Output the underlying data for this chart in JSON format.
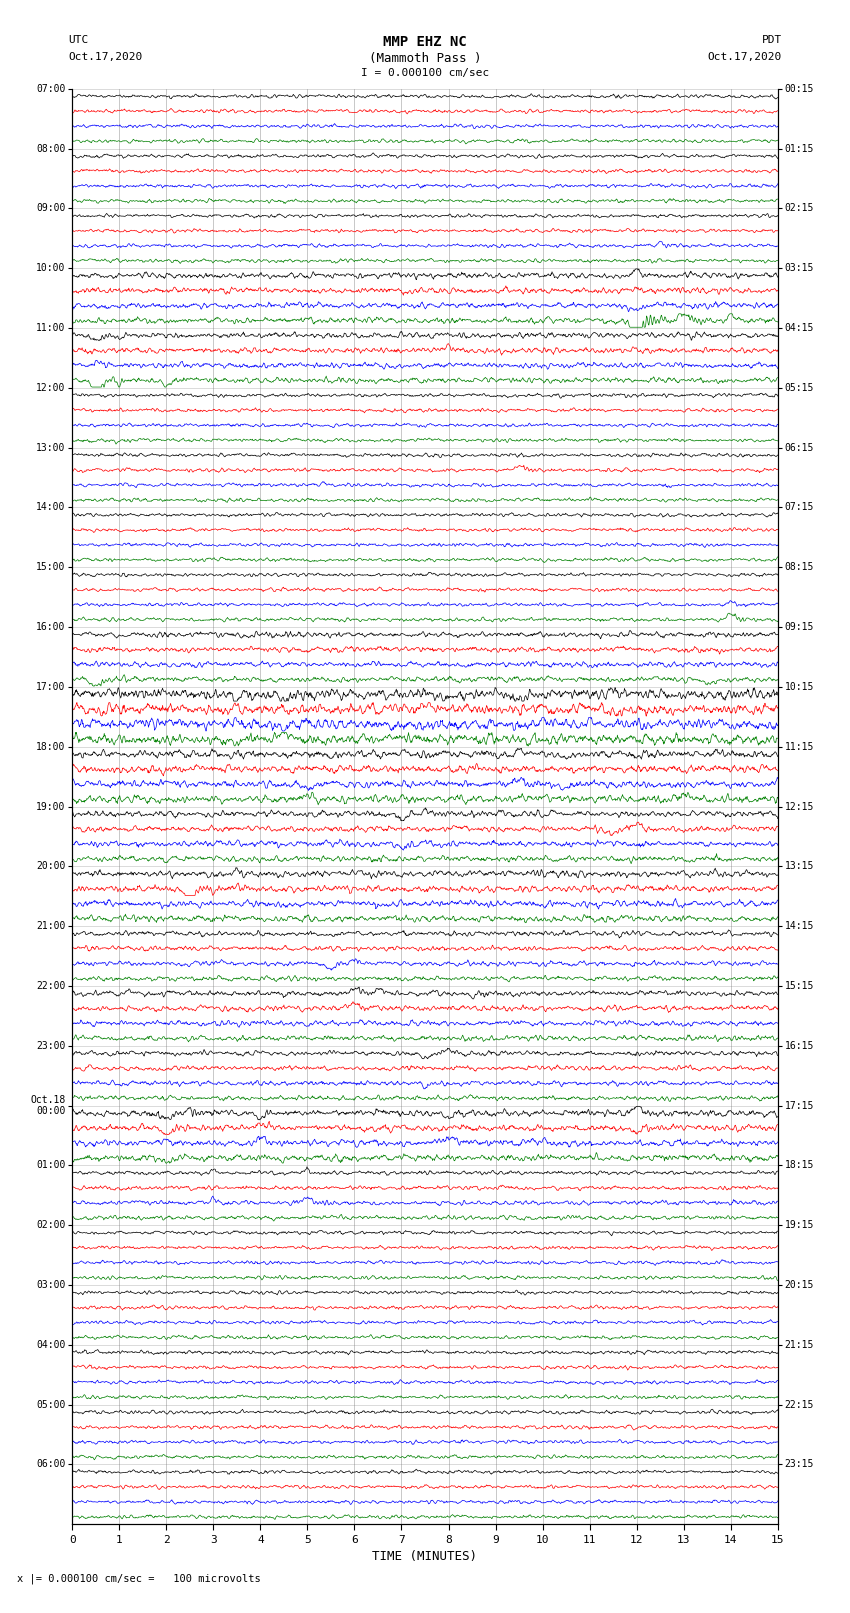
{
  "title_line1": "MMP EHZ NC",
  "title_line2": "(Mammoth Pass )",
  "scale_text": "I = 0.000100 cm/sec",
  "left_header_line1": "UTC",
  "left_header_line2": "Oct.17,2020",
  "right_header_line1": "PDT",
  "right_header_line2": "Oct.17,2020",
  "bottom_label": "TIME (MINUTES)",
  "bottom_note": "x |= 0.000100 cm/sec =   100 microvolts",
  "utc_labels": [
    "07:00",
    "08:00",
    "09:00",
    "10:00",
    "11:00",
    "12:00",
    "13:00",
    "14:00",
    "15:00",
    "16:00",
    "17:00",
    "18:00",
    "19:00",
    "20:00",
    "21:00",
    "22:00",
    "23:00",
    "Oct.18\n00:00",
    "01:00",
    "02:00",
    "03:00",
    "04:00",
    "05:00",
    "06:00"
  ],
  "pdt_labels": [
    "00:15",
    "01:15",
    "02:15",
    "03:15",
    "04:15",
    "05:15",
    "06:15",
    "07:15",
    "08:15",
    "09:15",
    "10:15",
    "11:15",
    "12:15",
    "13:15",
    "14:15",
    "15:15",
    "16:15",
    "17:15",
    "18:15",
    "19:15",
    "20:15",
    "21:15",
    "22:15",
    "23:15"
  ],
  "num_hours": 24,
  "traces_per_hour": 4,
  "row_colors": [
    "black",
    "red",
    "blue",
    "green"
  ],
  "bg_color": "white",
  "x_ticks": [
    0,
    1,
    2,
    3,
    4,
    5,
    6,
    7,
    8,
    9,
    10,
    11,
    12,
    13,
    14,
    15
  ],
  "x_lim": [
    0,
    15
  ],
  "fig_width": 8.5,
  "fig_height": 16.13,
  "dpi": 100
}
